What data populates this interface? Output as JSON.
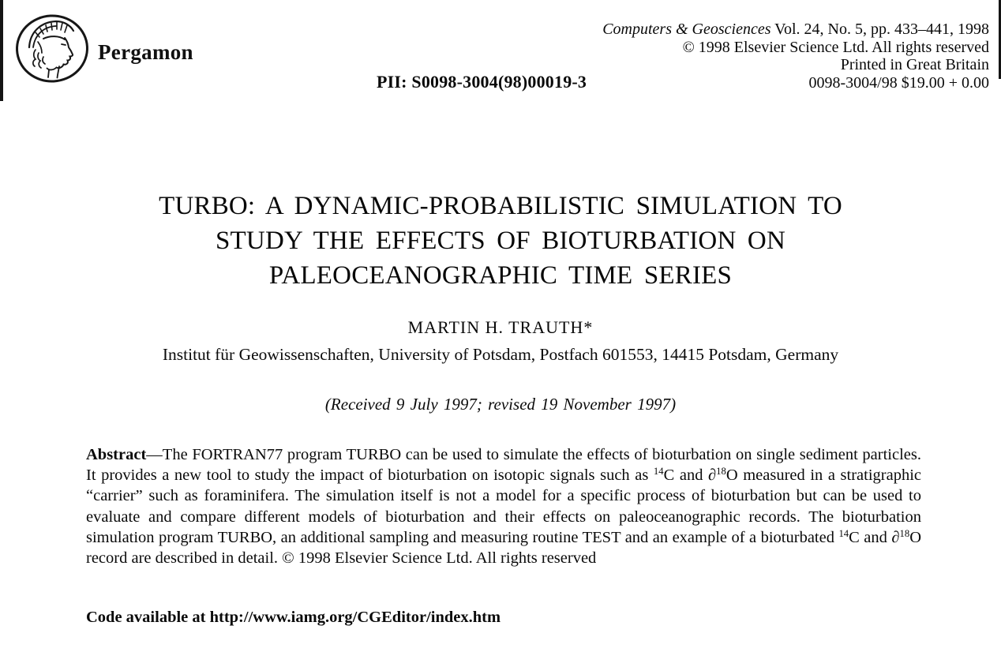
{
  "publisher": {
    "name": "Pergamon",
    "logo_icon": "pergamon-athena-emblem"
  },
  "journal_info": {
    "journal_name_italic": "Computers & Geosciences",
    "volume_info": " Vol. 24, No. 5, pp. 433–441, 1998",
    "copyright_line": "© 1998 Elsevier Science Ltd. All rights reserved",
    "printed_line": "Printed in Great Britain",
    "issn_price_line": "0098-3004/98 $19.00 + 0.00"
  },
  "pii": "PII: S0098-3004(98)00019-3",
  "title_lines": [
    "TURBO: A DYNAMIC-PROBABILISTIC SIMULATION TO",
    "STUDY THE EFFECTS OF BIOTURBATION ON",
    "PALEOCEANOGRAPHIC TIME SERIES"
  ],
  "author": "MARTIN H. TRAUTH*",
  "affiliation": "Institut für Geowissenschaften, University of Potsdam, Postfach 601553, 14415 Potsdam, Germany",
  "received": "(Received 9 July 1997; revised 19 November 1997)",
  "abstract": {
    "segments": [
      {
        "text": "Abstract",
        "bold": true
      },
      {
        "text": "—The FORTRAN77 program TURBO can be used to simulate the effects of bioturbation on single sediment particles. It provides a new tool to study the impact of bioturbation on isotopic signals such as "
      },
      {
        "text": "14",
        "sup": true
      },
      {
        "text": "C and ∂"
      },
      {
        "text": "18",
        "sup": true
      },
      {
        "text": "O measured in a stratigraphic “carrier” such as foraminifera. The simulation itself is not a model for a specific process of bioturbation but can be used to evaluate and compare different models of bioturbation and their effects on paleoceanographic records. The bioturbation simulation program TURBO, an additional sampling and measuring routine TEST and an example of a bioturbated "
      },
      {
        "text": "14",
        "sup": true
      },
      {
        "text": "C and ∂"
      },
      {
        "text": "18",
        "sup": true
      },
      {
        "text": "O record are described in detail. © 1998 Elsevier Science Ltd. All rights reserved"
      }
    ]
  },
  "code_availability": "Code available at http://www.iamg.org/CGEditor/index.htm"
}
